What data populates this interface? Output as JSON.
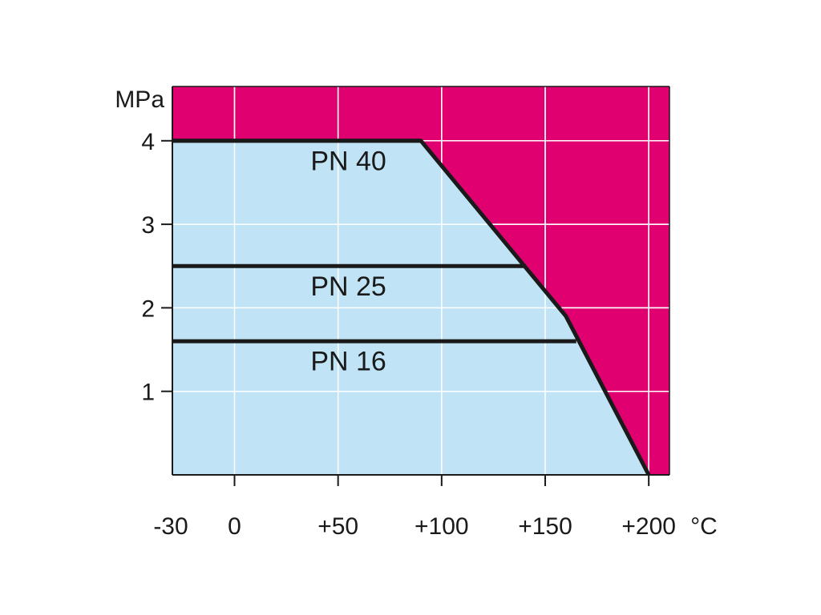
{
  "chart_data": {
    "type": "area",
    "xlabel": "°C",
    "ylabel": "MPa",
    "xlim": [
      -30,
      210
    ],
    "ylim": [
      0,
      4.65
    ],
    "x_ticks": [
      {
        "value": -30,
        "label": "-30"
      },
      {
        "value": 0,
        "label": "0"
      },
      {
        "value": 50,
        "label": "+50"
      },
      {
        "value": 100,
        "label": "+100"
      },
      {
        "value": 150,
        "label": "+150"
      },
      {
        "value": 200,
        "label": "+200"
      }
    ],
    "y_ticks": [
      {
        "value": 1,
        "label": "1"
      },
      {
        "value": 2,
        "label": "2"
      },
      {
        "value": 3,
        "label": "3"
      },
      {
        "value": 4,
        "label": "4"
      }
    ],
    "grid": true,
    "colors": {
      "allowed_region": "#c0e4f5",
      "forbidden_region": "#e0006f",
      "grid": "#ffffff",
      "line": "#1a1a1a"
    },
    "envelope": [
      {
        "x": -30,
        "y": 4.0
      },
      {
        "x": 90,
        "y": 4.0
      },
      {
        "x": 160,
        "y": 1.9
      },
      {
        "x": 200,
        "y": 0
      }
    ],
    "series": [
      {
        "name": "PN 40",
        "x": [
          -30,
          90
        ],
        "y": [
          4.0,
          4.0
        ],
        "label_at": {
          "x": 55,
          "y": 3.65
        }
      },
      {
        "name": "PN 25",
        "x": [
          -30,
          140
        ],
        "y": [
          2.5,
          2.5
        ],
        "label_at": {
          "x": 55,
          "y": 2.15
        }
      },
      {
        "name": "PN 16",
        "x": [
          -30,
          165
        ],
        "y": [
          1.6,
          1.6
        ],
        "label_at": {
          "x": 55,
          "y": 1.25
        }
      }
    ]
  }
}
